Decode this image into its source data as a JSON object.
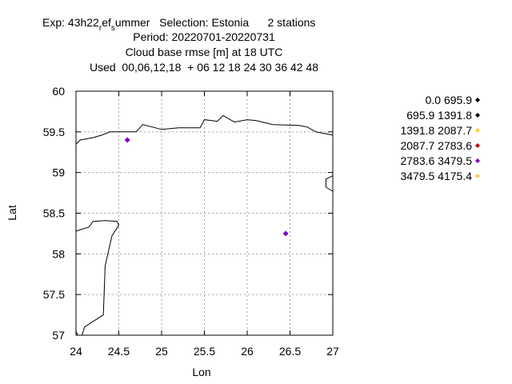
{
  "title": {
    "line1_pre": "Exp: 43h22",
    "line1_sub1": "r",
    "line1_mid": "ef",
    "line1_sub2": "s",
    "line1_post": "ummer   Selection: Estonia      2 stations",
    "line2": "Period: 20220701-20220731",
    "line3": "Cloud base rmse [m] at  18 UTC",
    "line4": "Used  00,06,12,18  + 06 12 18 24 30 36 42 48"
  },
  "chart_data": {
    "type": "scatter",
    "xlabel": "Lon",
    "ylabel": "Lat",
    "xlim": [
      24,
      27
    ],
    "ylim": [
      57,
      60
    ],
    "xticks": [
      "24",
      "24.5",
      "25",
      "25.5",
      "26",
      "26.5",
      "27"
    ],
    "yticks": [
      "57",
      "57.5",
      "58",
      "58.5",
      "59",
      "59.5",
      "60"
    ],
    "grid": true,
    "legend_position": "right",
    "legend": [
      {
        "label": "0.0 695.9",
        "color": "#000000"
      },
      {
        "label": "695.9 1391.8",
        "color": "#000000"
      },
      {
        "label": "1391.8 2087.7",
        "color": "#ffd040"
      },
      {
        "label": "2087.7 2783.6",
        "color": "#cc0000"
      },
      {
        "label": "2783.6 3479.5",
        "color": "#8000c0"
      },
      {
        "label": "3479.5 4175.4",
        "color": "#ffd040"
      }
    ],
    "points": [
      {
        "lon": 24.6,
        "lat": 59.4,
        "color": "#8000c0"
      },
      {
        "lon": 26.45,
        "lat": 58.25,
        "color": "#8000c0"
      }
    ],
    "coastlines": [
      [
        [
          24,
          59.35
        ],
        [
          24.05,
          59.4
        ],
        [
          24.2,
          59.43
        ],
        [
          24.3,
          59.46
        ],
        [
          24.4,
          59.5
        ],
        [
          24.7,
          59.5
        ],
        [
          24.72,
          59.52
        ],
        [
          24.78,
          59.59
        ],
        [
          25.0,
          59.53
        ],
        [
          25.2,
          59.55
        ],
        [
          25.45,
          59.55
        ],
        [
          25.5,
          59.65
        ],
        [
          25.65,
          59.63
        ],
        [
          25.72,
          59.7
        ],
        [
          25.85,
          59.62
        ],
        [
          26.0,
          59.65
        ],
        [
          26.1,
          59.64
        ],
        [
          26.3,
          59.59
        ],
        [
          26.6,
          59.58
        ],
        [
          26.7,
          59.56
        ],
        [
          26.8,
          59.5
        ],
        [
          27.0,
          59.46
        ]
      ],
      [
        [
          27.0,
          58.77
        ],
        [
          26.92,
          58.82
        ],
        [
          26.92,
          58.92
        ],
        [
          26.98,
          58.95
        ],
        [
          27.0,
          58.96
        ]
      ],
      [
        [
          24,
          58.28
        ],
        [
          24.15,
          58.33
        ],
        [
          24.2,
          58.4
        ],
        [
          24.35,
          58.41
        ],
        [
          24.48,
          58.4
        ],
        [
          24.5,
          58.35
        ],
        [
          24.42,
          58.22
        ],
        [
          24.34,
          57.85
        ],
        [
          24.32,
          57.25
        ],
        [
          24.2,
          57.17
        ],
        [
          24.1,
          57.1
        ],
        [
          24.07,
          57.0
        ]
      ],
      [
        [
          24,
          57.05
        ],
        [
          24.02,
          57.0
        ]
      ]
    ]
  }
}
